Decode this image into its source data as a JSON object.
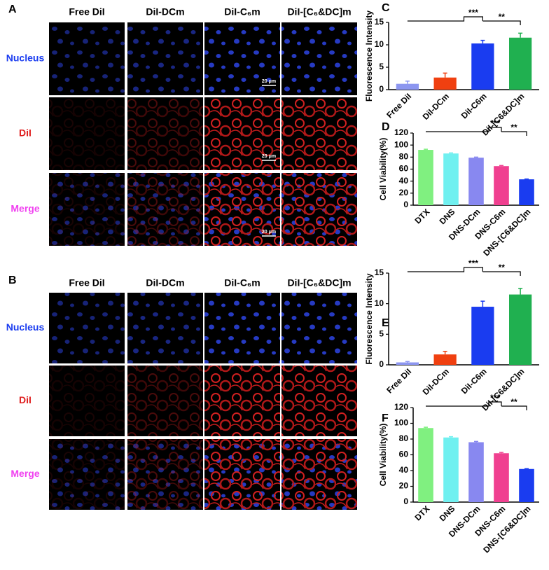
{
  "image_panels": [
    {
      "label": "A",
      "columns": [
        "Free DiI",
        "DiI-DCm",
        "DiI-C₆m",
        "DiI-[C₆&DC]m"
      ],
      "rows": [
        "Nucleus",
        "DiI",
        "Merge"
      ],
      "scale_bar": "20 μm"
    },
    {
      "label": "B",
      "columns": [
        "Free DiI",
        "DiI-DCm",
        "DiI-C₆m",
        "DiI-[C₆&DC]m"
      ],
      "rows": [
        "Nucleus",
        "DiI",
        "Merge"
      ]
    }
  ],
  "chart_data": [
    {
      "type": "bar",
      "label": "C",
      "ylabel": "Fluorescence Intensity",
      "categories": [
        "Free DiI",
        "DiI-DCm",
        "DiI-C6m",
        "DiI-[C6&DC]m"
      ],
      "values": [
        1.3,
        2.7,
        10.3,
        11.6
      ],
      "errors": [
        0.6,
        1.0,
        0.7,
        1.0
      ],
      "colors": [
        "#8c96f0",
        "#f04010",
        "#1a3cf0",
        "#20b050"
      ],
      "ylim": [
        0,
        15
      ],
      "yticks": [
        0,
        5,
        10,
        15
      ],
      "annotations": [
        "***",
        "**"
      ]
    },
    {
      "type": "bar",
      "label": "D",
      "ylabel": "Cell Viability(%)",
      "categories": [
        "DTX",
        "DNS",
        "DNS-DCm",
        "DNS-C6m",
        "DNS-[C6&DC]m"
      ],
      "values": [
        92,
        86,
        79,
        65,
        43
      ],
      "errors": [
        1,
        1,
        1,
        1,
        0.5
      ],
      "colors": [
        "#80f080",
        "#70f0f0",
        "#8888f0",
        "#f04090",
        "#1a3cf0"
      ],
      "ylim": [
        0,
        120
      ],
      "yticks": [
        0,
        20,
        40,
        60,
        80,
        100,
        120
      ],
      "annotations": [
        "***",
        "**"
      ]
    },
    {
      "type": "bar",
      "label": "E",
      "ylabel": "Fluorescence Intensity",
      "categories": [
        "Free DiI",
        "DiI-DCm",
        "DiI-C6m",
        "DiI-[C6&DC]m"
      ],
      "values": [
        0.4,
        1.7,
        9.5,
        11.5
      ],
      "errors": [
        0.15,
        0.5,
        0.9,
        1.0
      ],
      "colors": [
        "#8c96f0",
        "#f04010",
        "#1a3cf0",
        "#20b050"
      ],
      "ylim": [
        0,
        15
      ],
      "yticks": [
        0,
        5,
        10,
        15
      ],
      "annotations": [
        "***",
        "**"
      ]
    },
    {
      "type": "bar",
      "label": "F",
      "ylabel": "Cell Viability(%)",
      "categories": [
        "DTX",
        "DNS",
        "DNS-DCm",
        "DNS-C6m",
        "DNS-[C6&DC]m"
      ],
      "values": [
        94,
        82,
        76,
        62,
        42
      ],
      "errors": [
        1,
        1,
        1,
        1,
        0.5
      ],
      "colors": [
        "#80f080",
        "#70f0f0",
        "#8888f0",
        "#f04090",
        "#1a3cf0"
      ],
      "ylim": [
        0,
        120
      ],
      "yticks": [
        0,
        20,
        40,
        60,
        80,
        100,
        120
      ],
      "annotations": [
        "***",
        "**"
      ]
    }
  ]
}
